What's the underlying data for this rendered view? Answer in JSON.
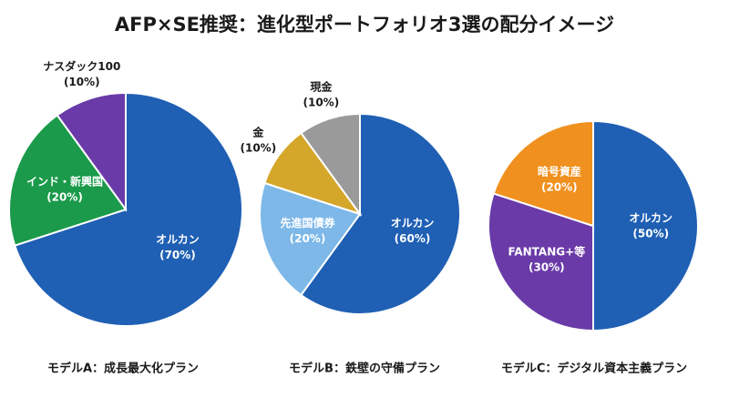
{
  "title": "AFP×SE推奨：進化型ポートフォリオ3選の配分イメージ",
  "chart_data": [
    {
      "type": "pie",
      "title": "モデルA：成長最大化プラン",
      "categories": [
        "オルカン",
        "インド・新興国",
        "ナスダック100"
      ],
      "values": [
        70,
        20,
        10
      ],
      "value_labels": [
        "(70%)",
        "(20%)",
        "(10%)"
      ],
      "colors": [
        "#1f5fb4",
        "#1a9a4a",
        "#6a3aa8"
      ]
    },
    {
      "type": "pie",
      "title": "モデルB：鉄壁の守備プラン",
      "categories": [
        "オルカン",
        "先進国債券",
        "金",
        "現金"
      ],
      "values": [
        60,
        20,
        10,
        10
      ],
      "value_labels": [
        "(60%)",
        "(20%)",
        "(10%)",
        "(10%)"
      ],
      "colors": [
        "#1f5fb4",
        "#7db8e8",
        "#d4a62a",
        "#9a9a9a"
      ]
    },
    {
      "type": "pie",
      "title": "モデルC：デジタル資本主義プラン",
      "categories": [
        "オルカン",
        "FANTANG+等",
        "暗号資産"
      ],
      "values": [
        50,
        30,
        20
      ],
      "value_labels": [
        "(50%)",
        "(30%)",
        "(20%)"
      ],
      "colors": [
        "#1f5fb4",
        "#6a3aa8",
        "#f0901e"
      ]
    }
  ]
}
